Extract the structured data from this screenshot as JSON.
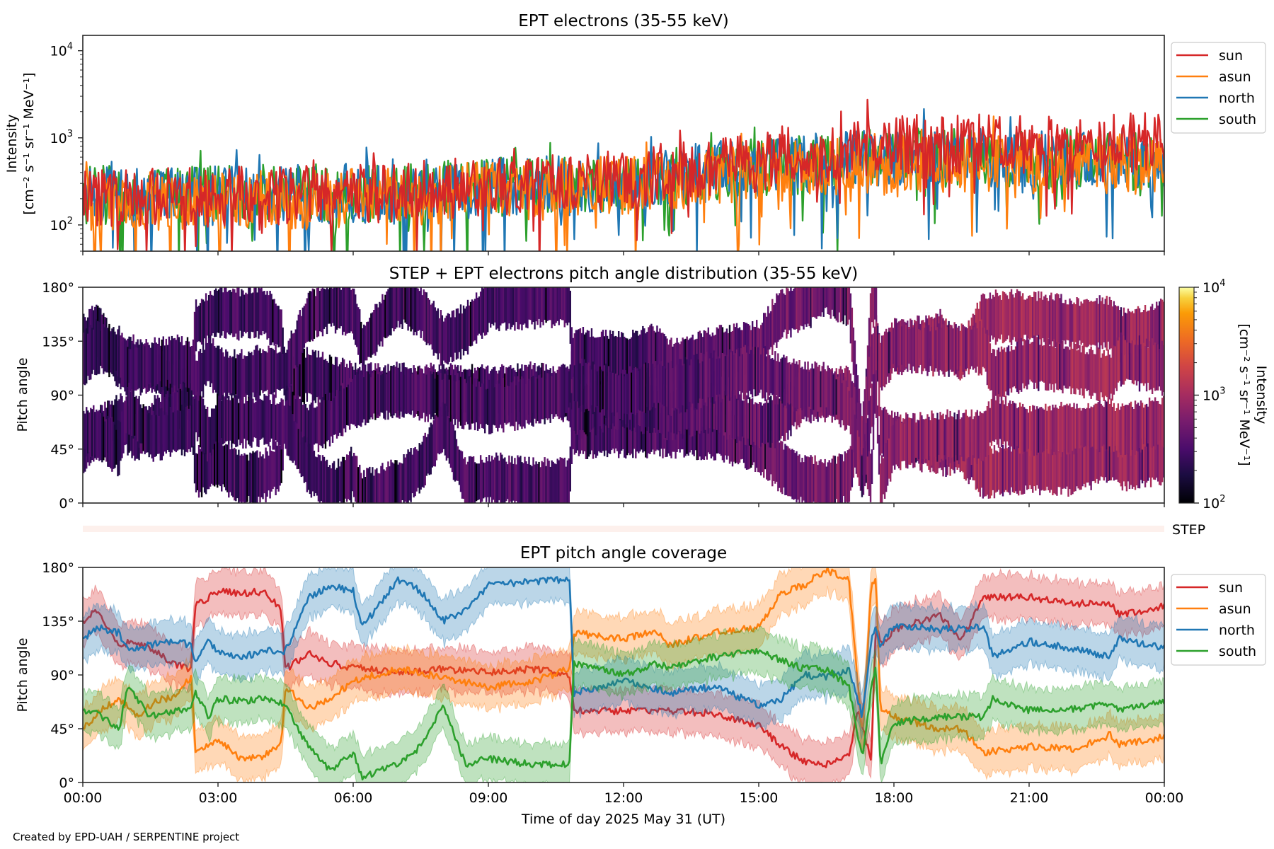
{
  "figure": {
    "credit": "Created by EPD-UAH / SERPENTINE project",
    "xlabel": "Time of day 2025 May 31 (UT)",
    "x_ticks": [
      "00:00",
      "03:00",
      "06:00",
      "09:00",
      "12:00",
      "15:00",
      "18:00",
      "21:00",
      "00:00"
    ],
    "colors": {
      "sun": "#d62728",
      "asun": "#ff7f0e",
      "north": "#1f77b4",
      "south": "#2ca02c"
    }
  },
  "chart_data": [
    {
      "type": "line",
      "title": "EPT electrons (35-55 keV)",
      "xlabel": "",
      "ylabel": "Intensity",
      "ylabel_units": "[cm⁻² s⁻¹ sr⁻¹ MeV⁻¹]",
      "yscale": "log",
      "ylim": [
        50,
        15000
      ],
      "xlim_hours": [
        0,
        24
      ],
      "y_ticks": [
        {
          "value": 100,
          "base": "10",
          "exp": "2"
        },
        {
          "value": 1000,
          "base": "10",
          "exp": "3"
        },
        {
          "value": 10000,
          "base": "10",
          "exp": "4"
        }
      ],
      "legend": {
        "location": "outside-upper-right",
        "entries": [
          "sun",
          "asun",
          "north",
          "south"
        ]
      },
      "series": [
        {
          "name": "south",
          "color": "#2ca02c",
          "trend_hours": [
            0,
            6,
            12,
            16,
            18,
            24
          ],
          "trend_median": [
            220,
            230,
            300,
            500,
            600,
            550
          ]
        },
        {
          "name": "north",
          "color": "#1f77b4",
          "trend_hours": [
            0,
            6,
            12,
            16,
            18,
            24
          ],
          "trend_median": [
            210,
            230,
            300,
            520,
            620,
            600
          ]
        },
        {
          "name": "asun",
          "color": "#ff7f0e",
          "trend_hours": [
            0,
            6,
            12,
            16,
            18,
            24
          ],
          "trend_median": [
            180,
            200,
            280,
            450,
            520,
            500
          ]
        },
        {
          "name": "sun",
          "color": "#d62728",
          "trend_hours": [
            0,
            6,
            12,
            16,
            18,
            24
          ],
          "trend_median": [
            200,
            220,
            330,
            600,
            850,
            900
          ]
        }
      ]
    },
    {
      "type": "heatmap",
      "title": "STEP + EPT electrons pitch angle distribution (35-55 keV)",
      "ylabel": "Pitch angle",
      "ylim": [
        0,
        180
      ],
      "y_ticks": [
        "0°",
        "45°",
        "90°",
        "135°",
        "180°"
      ],
      "y_tick_values": [
        0,
        45,
        90,
        135,
        180
      ],
      "colormap": "inferno",
      "colorbar": {
        "label": "Intensity",
        "units": "[cm⁻² s⁻¹ sr⁻¹ MeV⁻¹]",
        "scale": "log",
        "range": [
          100,
          10000
        ],
        "ticks": [
          {
            "value": 100,
            "base": "10",
            "exp": "2"
          },
          {
            "value": 1000,
            "base": "10",
            "exp": "3"
          },
          {
            "value": 10000,
            "base": "10",
            "exp": "4"
          }
        ]
      },
      "intensity_trend_hours": [
        0,
        6,
        10,
        12,
        15,
        18,
        20,
        24
      ],
      "intensity_trend": [
        250,
        300,
        320,
        300,
        450,
        700,
        900,
        850
      ],
      "step_strip_label": "STEP"
    },
    {
      "type": "line",
      "title": "EPT pitch angle coverage",
      "ylabel": "Pitch angle",
      "ylim": [
        0,
        180
      ],
      "y_ticks": [
        "0°",
        "45°",
        "90°",
        "135°",
        "180°"
      ],
      "y_tick_values": [
        0,
        45,
        90,
        135,
        180
      ],
      "legend": {
        "location": "outside-upper-right",
        "entries": [
          "sun",
          "asun",
          "north",
          "south"
        ]
      },
      "band_halfwidth_deg": 18,
      "series": [
        {
          "name": "sun",
          "color": "#d62728",
          "hours": [
            0,
            0.3,
            0.8,
            1.2,
            1.6,
            2.0,
            2.4,
            2.5,
            3.0,
            3.5,
            4.0,
            4.4,
            4.5,
            5.0,
            5.5,
            6.0,
            7.0,
            8.0,
            9.0,
            10.0,
            10.8,
            10.9,
            12.0,
            13.0,
            14.0,
            15.0,
            15.5,
            16.0,
            16.5,
            17.0,
            17.2,
            17.5,
            17.6,
            17.7,
            18.0,
            19.0,
            19.5,
            20.0,
            21.0,
            22.0,
            22.8,
            23.0,
            24.0
          ],
          "values": [
            135,
            145,
            115,
            118,
            110,
            100,
            95,
            148,
            160,
            158,
            160,
            145,
            95,
            108,
            100,
            96,
            92,
            95,
            92,
            95,
            90,
            60,
            60,
            60,
            58,
            48,
            30,
            18,
            15,
            22,
            60,
            18,
            135,
            115,
            128,
            140,
            120,
            155,
            155,
            150,
            150,
            140,
            148
          ]
        },
        {
          "name": "asun",
          "color": "#ff7f0e",
          "hours": [
            0,
            0.4,
            0.8,
            1.2,
            1.6,
            2.0,
            2.4,
            2.5,
            3.0,
            3.5,
            4.0,
            4.4,
            4.5,
            5.0,
            5.5,
            6.0,
            7.0,
            8.0,
            9.0,
            10.0,
            10.8,
            10.9,
            12.0,
            12.7,
            13.0,
            14.0,
            15.0,
            15.5,
            16.0,
            16.5,
            17.0,
            17.3,
            17.5,
            17.6,
            17.7,
            18.0,
            19.0,
            19.5,
            20.0,
            21.0,
            22.0,
            22.8,
            23.0,
            24.0
          ],
          "values": [
            45,
            60,
            70,
            55,
            68,
            72,
            88,
            25,
            35,
            20,
            22,
            32,
            80,
            62,
            70,
            85,
            95,
            88,
            80,
            85,
            95,
            125,
            120,
            128,
            115,
            125,
            130,
            158,
            165,
            178,
            170,
            40,
            165,
            172,
            60,
            55,
            45,
            45,
            25,
            30,
            28,
            40,
            32,
            38
          ]
        },
        {
          "name": "north",
          "color": "#1f77b4",
          "hours": [
            0,
            0.3,
            0.8,
            1.0,
            1.5,
            2.0,
            2.4,
            2.5,
            2.8,
            3.0,
            3.5,
            4.0,
            4.5,
            5.0,
            5.5,
            6.0,
            6.2,
            7.0,
            7.5,
            8.0,
            8.5,
            9.0,
            10.0,
            10.8,
            10.9,
            12.0,
            13.0,
            14.0,
            15.0,
            15.5,
            16.0,
            16.5,
            17.0,
            17.3,
            17.5,
            17.6,
            17.7,
            18.0,
            19.0,
            20.0,
            20.2,
            21.0,
            22.0,
            22.8,
            23.0,
            24.0
          ],
          "values": [
            120,
            130,
            125,
            110,
            115,
            118,
            115,
            100,
            120,
            108,
            105,
            110,
            110,
            155,
            165,
            160,
            130,
            170,
            160,
            135,
            145,
            165,
            168,
            170,
            75,
            85,
            75,
            80,
            65,
            70,
            90,
            88,
            95,
            55,
            120,
            130,
            115,
            132,
            128,
            130,
            105,
            118,
            112,
            105,
            120,
            112
          ]
        },
        {
          "name": "south",
          "color": "#2ca02c",
          "hours": [
            0,
            0.3,
            0.8,
            1.0,
            1.5,
            2.0,
            2.4,
            2.5,
            2.8,
            3.0,
            3.5,
            4.0,
            4.5,
            5.0,
            5.5,
            6.0,
            6.2,
            7.0,
            7.5,
            8.0,
            8.5,
            9.0,
            10.0,
            10.8,
            10.9,
            12.0,
            12.8,
            13.0,
            14.0,
            15.0,
            16.0,
            16.5,
            17.0,
            17.3,
            17.5,
            17.6,
            17.7,
            18.0,
            19.0,
            20.0,
            20.2,
            21.0,
            22.0,
            22.8,
            23.0,
            24.0
          ],
          "values": [
            60,
            58,
            45,
            80,
            55,
            60,
            62,
            75,
            55,
            70,
            68,
            70,
            65,
            30,
            10,
            25,
            5,
            15,
            30,
            65,
            15,
            20,
            15,
            15,
            100,
            90,
            100,
            95,
            105,
            110,
            95,
            95,
            80,
            20,
            80,
            95,
            15,
            50,
            55,
            55,
            70,
            60,
            62,
            65,
            60,
            68
          ]
        }
      ]
    }
  ]
}
